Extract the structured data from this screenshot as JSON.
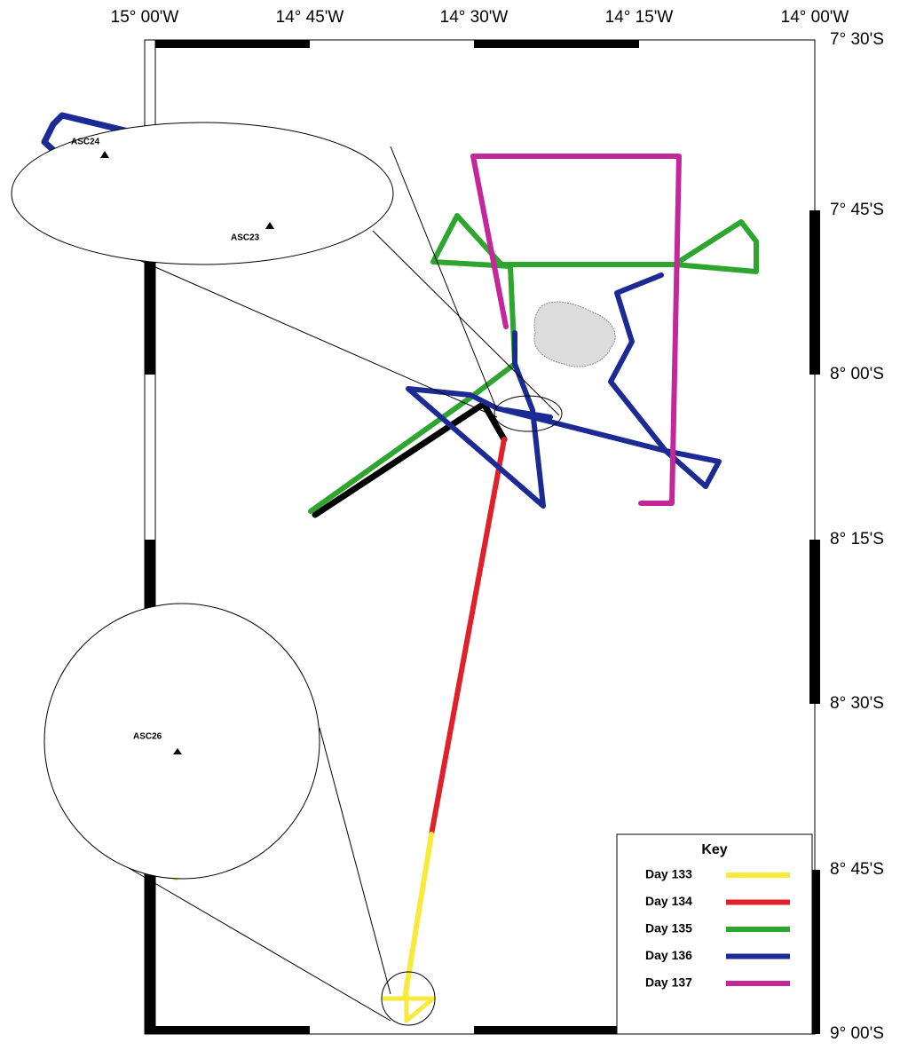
{
  "map": {
    "longitude_labels": [
      "15° 00'W",
      "14° 45'W",
      "14° 30'W",
      "14° 15'W",
      "14° 00'W"
    ],
    "latitude_labels": [
      "7° 30'S",
      "7° 45'S",
      "8° 00'S",
      "8° 15'S",
      "8° 30'S",
      "8° 45'S",
      "9° 00'S"
    ],
    "stations": [
      "ASC24",
      "ASC23",
      "ASC26"
    ],
    "key": {
      "title": "Key",
      "items": [
        {
          "name": "Day 133",
          "color": "#f7ea3a"
        },
        {
          "name": "Day 134",
          "color": "#e0202a"
        },
        {
          "name": "Day 135",
          "color": "#2ea52e"
        },
        {
          "name": "Day 136",
          "color": "#1c2a94"
        },
        {
          "name": "Day 137",
          "color": "#c4279a"
        }
      ]
    }
  }
}
